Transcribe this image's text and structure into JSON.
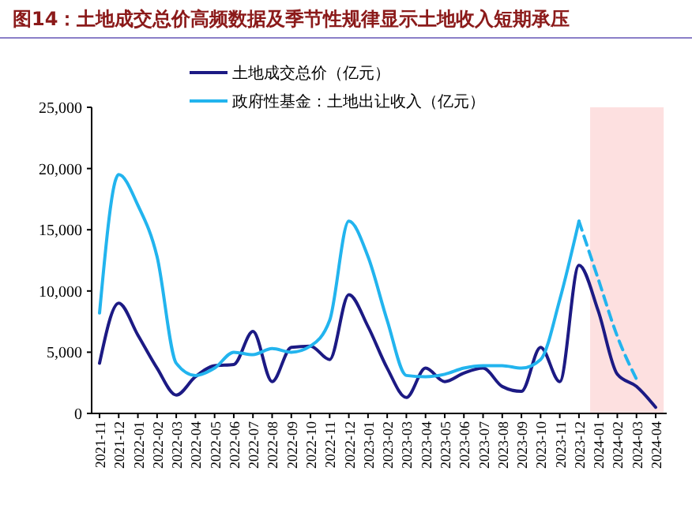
{
  "chart_data": {
    "type": "line",
    "title": "图14：土地成交总价高频数据及季节性规律显示土地收入短期承压",
    "categories": [
      "2021-11",
      "2021-12",
      "2022-01",
      "2022-02",
      "2022-03",
      "2022-04",
      "2022-05",
      "2022-06",
      "2022-07",
      "2022-08",
      "2022-09",
      "2022-10",
      "2022-11",
      "2022-12",
      "2023-01",
      "2023-02",
      "2023-03",
      "2023-04",
      "2023-05",
      "2023-06",
      "2023-07",
      "2023-08",
      "2023-09",
      "2023-10",
      "2023-11",
      "2023-12",
      "2024-01",
      "2024-02",
      "2024-03",
      "2024-04"
    ],
    "series": [
      {
        "name": "土地成交总价（亿元）",
        "color": "#1c1a84",
        "line_style": "solid",
        "values": [
          4100,
          9000,
          6400,
          3700,
          1500,
          3000,
          3900,
          4000,
          6700,
          2600,
          5400,
          5500,
          4400,
          9700,
          7100,
          3700,
          1300,
          3700,
          2600,
          3300,
          3700,
          2200,
          1800,
          5400,
          2600,
          12100,
          8400,
          3200,
          2200,
          500
        ]
      },
      {
        "name": "政府性基金：土地出让收入（亿元）",
        "color": "#22b4ee",
        "line_style": "solid",
        "values": [
          8200,
          19500,
          17000,
          12800,
          4100,
          3100,
          3700,
          5000,
          4800,
          5300,
          5000,
          5500,
          7600,
          15700,
          12800,
          7600,
          3100,
          3000,
          3200,
          3700,
          3900,
          3900,
          3700,
          4400,
          9300,
          15700,
          null,
          null,
          null,
          null
        ]
      },
      {
        "color": "#22b4ee",
        "line_style": "dashed",
        "values": [
          null,
          null,
          null,
          null,
          null,
          null,
          null,
          null,
          null,
          null,
          null,
          null,
          null,
          null,
          null,
          null,
          null,
          null,
          null,
          null,
          null,
          null,
          null,
          null,
          null,
          15700,
          11000,
          6300,
          2800,
          null
        ]
      }
    ],
    "ylim": [
      0,
      25000
    ],
    "yticks": [
      {
        "value": 0,
        "label": "0"
      },
      {
        "value": 5000,
        "label": "5,000"
      },
      {
        "value": 10000,
        "label": "10,000"
      },
      {
        "value": 15000,
        "label": "15,000"
      },
      {
        "value": 20000,
        "label": "20,000"
      },
      {
        "value": 25000,
        "label": "25,000"
      }
    ],
    "bands": [
      {
        "axis": "x",
        "from": "2024-01",
        "to": "2024-04",
        "color": "#fde0e0"
      }
    ],
    "legend": "top",
    "grid": false
  }
}
